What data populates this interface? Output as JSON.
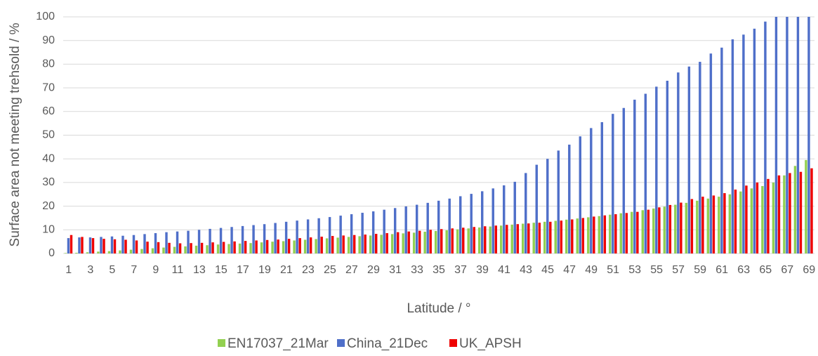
{
  "chart_data": {
    "type": "bar",
    "y_label": "Surface area not meeting trehsold / %",
    "x_label": "Latitude / °",
    "categories": [
      "1",
      null,
      "3",
      null,
      "5",
      null,
      "7",
      null,
      "9",
      null,
      "11",
      null,
      "13",
      null,
      "15",
      null,
      "17",
      null,
      "19",
      null,
      "21",
      null,
      "23",
      null,
      "25",
      null,
      "27",
      null,
      "29",
      null,
      "31",
      null,
      "33",
      null,
      "35",
      null,
      "37",
      null,
      "39",
      null,
      "41",
      null,
      "43",
      null,
      "45",
      null,
      "47",
      null,
      "49",
      null,
      "51",
      null,
      "53",
      null,
      "55",
      null,
      "57",
      null,
      "59",
      null,
      "61",
      null,
      "63",
      null,
      "65",
      null,
      "67",
      null,
      "69"
    ],
    "series": [
      {
        "name": "EN17037_21Mar",
        "color": "#92d050",
        "values": [
          0.2,
          0.3,
          0.5,
          0.8,
          1,
          1.3,
          1.6,
          1.9,
          2.2,
          2.5,
          2.8,
          3,
          3.3,
          3.5,
          3.8,
          4,
          4.2,
          4.4,
          4.7,
          5,
          5.2,
          5.5,
          5.8,
          6.1,
          6.4,
          6.7,
          7,
          7.3,
          7.6,
          7.9,
          8.2,
          8.5,
          8.8,
          9.2,
          9.5,
          9.8,
          10.2,
          10.6,
          11,
          11.4,
          11.8,
          12.2,
          12.6,
          13,
          13.4,
          13.8,
          14.3,
          14.8,
          15.3,
          15.8,
          16.4,
          17,
          17.6,
          18.3,
          19,
          19.8,
          20.6,
          21.4,
          22.3,
          23.2,
          24,
          25,
          26.2,
          27.5,
          28.5,
          30,
          33,
          37,
          39.5
        ]
      },
      {
        "name": "China_21Dec",
        "color": "#4f6fc9",
        "values": [
          6.5,
          6.8,
          6.8,
          7,
          7.2,
          7.5,
          7.8,
          8.2,
          8.6,
          9,
          9.3,
          9.6,
          10,
          10.4,
          10.8,
          11.2,
          11.6,
          12,
          12.4,
          12.9,
          13.4,
          13.9,
          14.4,
          14.9,
          15.4,
          16,
          16.6,
          17.2,
          17.8,
          18.5,
          19.2,
          19.9,
          20.6,
          21.4,
          22.3,
          23.2,
          24.2,
          25.2,
          26.3,
          27.5,
          28.8,
          30.3,
          34,
          37.5,
          40,
          43.5,
          46,
          49.5,
          53,
          55.5,
          59,
          61.5,
          65,
          67.5,
          70.5,
          73,
          76.5,
          79,
          81,
          84.5,
          87,
          90.5,
          92.5,
          95,
          98,
          100,
          100,
          100,
          100
        ]
      },
      {
        "name": "UK_APSH",
        "color": "#ee0000",
        "values": [
          7.8,
          7,
          6.5,
          6.2,
          6,
          5.8,
          5.5,
          5,
          4.8,
          4.5,
          4.3,
          4.4,
          4.5,
          4.7,
          4.9,
          5.1,
          5.3,
          5.5,
          5.7,
          5.9,
          6.2,
          6.5,
          6.8,
          7.1,
          7.4,
          7.6,
          7.8,
          8,
          8.3,
          8.6,
          9,
          9.3,
          9.6,
          10,
          10.3,
          10.6,
          10.9,
          11.2,
          11.5,
          11.8,
          12.1,
          12.4,
          12.7,
          13,
          13.4,
          13.9,
          14.4,
          15,
          15.6,
          16.1,
          16.6,
          17.1,
          17.6,
          18.5,
          19.5,
          20.5,
          21.5,
          23,
          24,
          24.5,
          25.5,
          27,
          28.7,
          30,
          31.5,
          33,
          34,
          34.5,
          36
        ]
      }
    ],
    "ylim": [
      0,
      100
    ],
    "yticks": [
      0,
      10,
      20,
      30,
      40,
      50,
      60,
      70,
      80,
      90,
      100
    ],
    "grid": true,
    "legend": "bottom"
  }
}
